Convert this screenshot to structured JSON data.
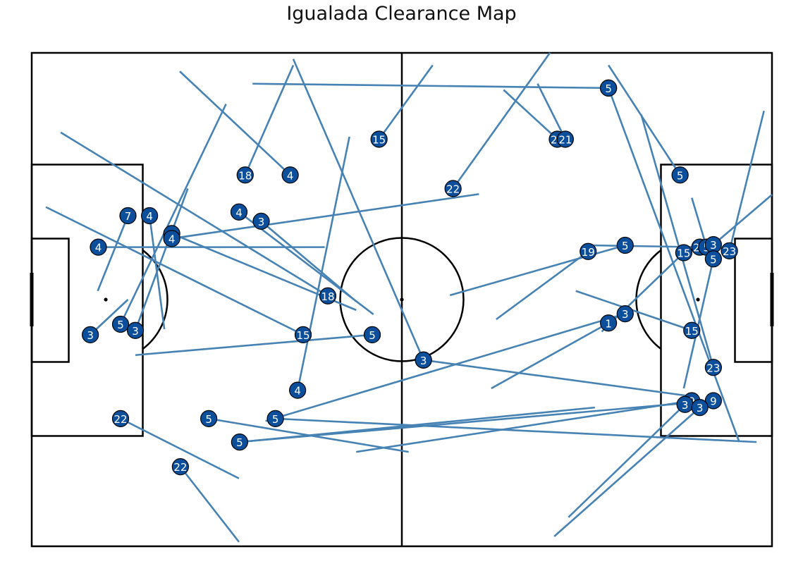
{
  "chart_data": {
    "type": "scatter",
    "title": "Igualada Clearance Map",
    "xlim": [
      0,
      120
    ],
    "ylim": [
      0,
      80
    ],
    "colors": {
      "line": "#4682b4",
      "marker": "#0b4f9c",
      "marker_edge": "#000000",
      "label": "#ffffff",
      "pitch": "#000000"
    },
    "clearances": [
      {
        "player": "5",
        "x": 93.5,
        "y": 74.3,
        "end_x": 35.8,
        "end_y": 75.0
      },
      {
        "player": "5",
        "x": 93.5,
        "y": 74.3,
        "end_x": 114.7,
        "end_y": 16.9
      },
      {
        "player": "22",
        "x": 85.2,
        "y": 66.0,
        "end_x": 76.5,
        "end_y": 74.0
      },
      {
        "player": "21",
        "x": 86.5,
        "y": 66.0,
        "end_x": 82.0,
        "end_y": 75.0
      },
      {
        "player": "15",
        "x": 56.3,
        "y": 66.0,
        "end_x": 65.0,
        "end_y": 78.0
      },
      {
        "player": "22",
        "x": 68.3,
        "y": 58.0,
        "end_x": 84.0,
        "end_y": 80.0
      },
      {
        "player": "18",
        "x": 34.6,
        "y": 60.2,
        "end_x": 42.4,
        "end_y": 78.0
      },
      {
        "player": "4",
        "x": 41.9,
        "y": 60.2,
        "end_x": 24.0,
        "end_y": 77.0
      },
      {
        "player": "5",
        "x": 105.1,
        "y": 60.2,
        "end_x": 93.5,
        "end_y": 78.0
      },
      {
        "player": "7",
        "x": 15.6,
        "y": 53.6,
        "end_x": 10.7,
        "end_y": 41.4
      },
      {
        "player": "4",
        "x": 19.1,
        "y": 53.6,
        "end_x": 21.5,
        "end_y": 35.2
      },
      {
        "player": "7",
        "x": 22.7,
        "y": 50.7,
        "end_x": 52.6,
        "end_y": 38.3
      },
      {
        "player": "4",
        "x": 22.7,
        "y": 49.9,
        "end_x": 72.5,
        "end_y": 57.1
      },
      {
        "player": "4",
        "x": 33.6,
        "y": 54.2,
        "end_x": 55.4,
        "end_y": 37.6
      },
      {
        "player": "3",
        "x": 37.2,
        "y": 52.7,
        "end_x": 52.6,
        "end_y": 39.7
      },
      {
        "player": "4",
        "x": 10.8,
        "y": 48.5,
        "end_x": 47.5,
        "end_y": 48.5
      },
      {
        "player": "5",
        "x": 14.4,
        "y": 36.0,
        "end_x": 31.5,
        "end_y": 71.7
      },
      {
        "player": "3",
        "x": 16.8,
        "y": 35.0,
        "end_x": 25.3,
        "end_y": 58.0
      },
      {
        "player": "18",
        "x": 48.0,
        "y": 40.6,
        "end_x": 4.7,
        "end_y": 67.1
      },
      {
        "player": "15",
        "x": 44.0,
        "y": 34.3,
        "end_x": 2.3,
        "end_y": 55.0
      },
      {
        "player": "5",
        "x": 55.2,
        "y": 34.3,
        "end_x": 16.8,
        "end_y": 31.0
      },
      {
        "player": "3",
        "x": 9.5,
        "y": 34.3,
        "end_x": 15.6,
        "end_y": 40.0
      },
      {
        "player": "3",
        "x": 63.5,
        "y": 30.2,
        "end_x": 42.4,
        "end_y": 79.0
      },
      {
        "player": "3",
        "x": 63.5,
        "y": 30.2,
        "end_x": 106.3,
        "end_y": 24.4
      },
      {
        "player": "4",
        "x": 43.1,
        "y": 25.3,
        "end_x": 51.5,
        "end_y": 66.4
      },
      {
        "player": "22",
        "x": 14.4,
        "y": 20.7,
        "end_x": 33.6,
        "end_y": 11.0
      },
      {
        "player": "5",
        "x": 28.7,
        "y": 20.7,
        "end_x": 61.1,
        "end_y": 15.3
      },
      {
        "player": "5",
        "x": 39.5,
        "y": 20.7,
        "end_x": 117.5,
        "end_y": 16.9
      },
      {
        "player": "5",
        "x": 33.7,
        "y": 16.9,
        "end_x": 91.3,
        "end_y": 22.5
      },
      {
        "player": "22",
        "x": 24.1,
        "y": 12.9,
        "end_x": 33.6,
        "end_y": 0.7
      },
      {
        "player": "5",
        "x": 96.2,
        "y": 48.8,
        "end_x": 67.8,
        "end_y": 40.7
      },
      {
        "player": "19",
        "x": 90.2,
        "y": 47.8,
        "end_x": 75.3,
        "end_y": 36.8
      },
      {
        "player": "3",
        "x": 96.2,
        "y": 37.7,
        "end_x": 37.9,
        "end_y": 20.3
      },
      {
        "player": "1",
        "x": 93.5,
        "y": 36.2,
        "end_x": 74.5,
        "end_y": 25.6
      },
      {
        "player": "15",
        "x": 107.0,
        "y": 35.0,
        "end_x": 88.2,
        "end_y": 41.4
      },
      {
        "player": "15",
        "x": 105.7,
        "y": 47.6,
        "end_x": 92.4,
        "end_y": 34.8
      },
      {
        "player": "23",
        "x": 108.3,
        "y": 48.5,
        "end_x": 90.5,
        "end_y": 48.8
      },
      {
        "player": "5",
        "x": 109.4,
        "y": 48.5,
        "end_x": 107.0,
        "end_y": 56.5
      },
      {
        "player": "3",
        "x": 110.5,
        "y": 48.9,
        "end_x": 120.0,
        "end_y": 57.0
      },
      {
        "player": "23",
        "x": 113.1,
        "y": 47.9,
        "end_x": 118.7,
        "end_y": 70.6
      },
      {
        "player": "5",
        "x": 110.5,
        "y": 46.6,
        "end_x": 105.7,
        "end_y": 25.6
      },
      {
        "player": "23",
        "x": 110.5,
        "y": 29.0,
        "end_x": 98.8,
        "end_y": 70.0
      },
      {
        "player": "9",
        "x": 107.0,
        "y": 23.6,
        "end_x": 52.6,
        "end_y": 15.3
      },
      {
        "player": "9",
        "x": 110.5,
        "y": 23.6,
        "end_x": 33.6,
        "end_y": 16.9
      },
      {
        "player": "3",
        "x": 105.9,
        "y": 23.0,
        "end_x": 87.0,
        "end_y": 4.7
      },
      {
        "player": "3",
        "x": 108.3,
        "y": 22.5,
        "end_x": 84.7,
        "end_y": 1.6
      }
    ]
  }
}
